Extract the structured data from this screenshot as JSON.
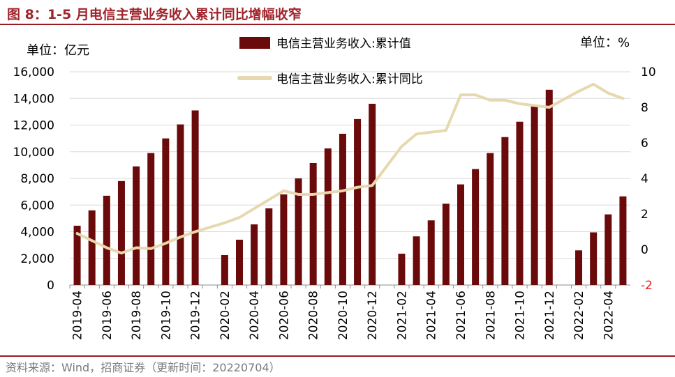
{
  "title": "图 8：1-5 月电信主营业务收入累计同比增幅收窄",
  "source": "资料来源：Wind，招商证券（更新时间：20220704）",
  "colors": {
    "bar": "#6b0a0a",
    "line": "#e8d8b0",
    "title": "#a0232a",
    "red_tick": "#e0201a"
  },
  "chart_data": {
    "type": "bar",
    "left_unit": "单位：亿元",
    "right_unit": "单位：%",
    "categories": [
      "2019-04",
      "2019-05",
      "2019-06",
      "2019-07",
      "2019-08",
      "2019-09",
      "2019-10",
      "2019-11",
      "2019-12",
      "2020-01",
      "2020-02",
      "2020-03",
      "2020-04",
      "2020-05",
      "2020-06",
      "2020-07",
      "2020-08",
      "2020-09",
      "2020-10",
      "2020-11",
      "2020-12",
      "2021-01",
      "2021-02",
      "2021-03",
      "2021-04",
      "2021-05",
      "2021-06",
      "2021-07",
      "2021-08",
      "2021-09",
      "2021-10",
      "2021-11",
      "2021-12",
      "2022-01",
      "2022-02",
      "2022-03",
      "2022-04",
      "2022-05"
    ],
    "x_tick_labels": [
      "2019-04",
      "2019-06",
      "2019-08",
      "2019-10",
      "2019-12",
      "2020-02",
      "2020-04",
      "2020-06",
      "2020-08",
      "2020-10",
      "2020-12",
      "2021-02",
      "2021-04",
      "2021-06",
      "2021-08",
      "2021-10",
      "2021-12",
      "2022-02",
      "2022-04"
    ],
    "y_left": {
      "min": 0,
      "max": 16000,
      "ticks": [
        "0",
        "2,000",
        "4,000",
        "6,000",
        "8,000",
        "10,000",
        "12,000",
        "14,000",
        "16,000"
      ]
    },
    "y_right": {
      "min": -2,
      "max": 10,
      "ticks": [
        "-2",
        "0",
        "2",
        "4",
        "6",
        "8",
        "10"
      ]
    },
    "series": [
      {
        "name": "电信主营业务收入:累计值",
        "kind": "bar",
        "axis": "left",
        "values": [
          4450,
          5600,
          6700,
          7800,
          8900,
          9900,
          11000,
          12050,
          13100,
          null,
          2250,
          3400,
          4550,
          5750,
          6800,
          8000,
          9150,
          10250,
          11350,
          12450,
          13600,
          null,
          2350,
          3650,
          4850,
          6100,
          7550,
          8700,
          9900,
          11100,
          12250,
          13400,
          14650,
          null,
          2600,
          3950,
          5300,
          6650
        ]
      },
      {
        "name": "电信主营业务收入:累计同比",
        "kind": "line",
        "axis": "right",
        "values": [
          0.9,
          0.5,
          0.1,
          -0.2,
          0.1,
          0.05,
          0.35,
          0.7,
          1.0,
          null,
          1.5,
          1.8,
          2.3,
          2.8,
          3.3,
          3.1,
          3.1,
          3.2,
          3.3,
          3.5,
          3.6,
          null,
          5.8,
          6.5,
          6.6,
          6.7,
          8.7,
          8.7,
          8.4,
          8.4,
          8.2,
          8.1,
          8.0,
          null,
          8.9,
          9.3,
          8.8,
          8.5
        ]
      }
    ]
  }
}
